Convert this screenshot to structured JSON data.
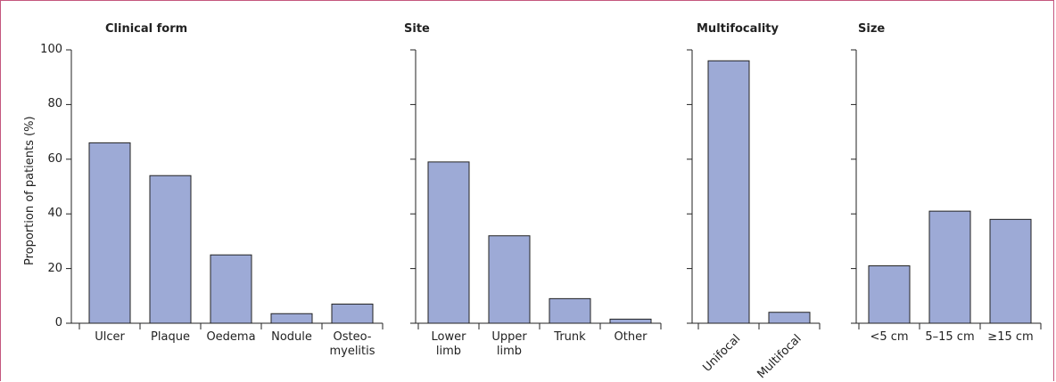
{
  "chart_data": [
    {
      "type": "bar",
      "title": "Clinical form",
      "y_label": "Proportion of patients (%)",
      "categories": [
        "Ulcer",
        "Plaque",
        "Oedema",
        "Nodule",
        "Osteo-\nmyelitis"
      ],
      "values": [
        66,
        54,
        25,
        3.5,
        7
      ],
      "color": "#9daad6",
      "ylim": [
        0,
        100
      ],
      "yticks": [
        0,
        20,
        40,
        60,
        80,
        100
      ]
    },
    {
      "type": "bar",
      "title": "Site",
      "categories": [
        "Lower\nlimb",
        "Upper\nlimb",
        "Trunk",
        "Other"
      ],
      "values": [
        59,
        32,
        9,
        1.5
      ],
      "color": "#9daad6",
      "ylim": [
        0,
        100
      ],
      "yticks": [
        0,
        20,
        40,
        60,
        80,
        100
      ]
    },
    {
      "type": "bar",
      "title": "Multifocality",
      "categories": [
        "Unifocal",
        "Multifocal"
      ],
      "values": [
        96,
        4
      ],
      "color": "#9daad6",
      "ylim": [
        0,
        100
      ],
      "yticks": [
        0,
        20,
        40,
        60,
        80,
        100
      ]
    },
    {
      "type": "bar",
      "title": "Size",
      "categories": [
        "<5 cm",
        "5–15 cm",
        "≥15 cm"
      ],
      "values": [
        21,
        41,
        38
      ],
      "color": "#9daad6",
      "ylim": [
        0,
        100
      ],
      "yticks": [
        0,
        20,
        40,
        60,
        80,
        100
      ]
    }
  ]
}
